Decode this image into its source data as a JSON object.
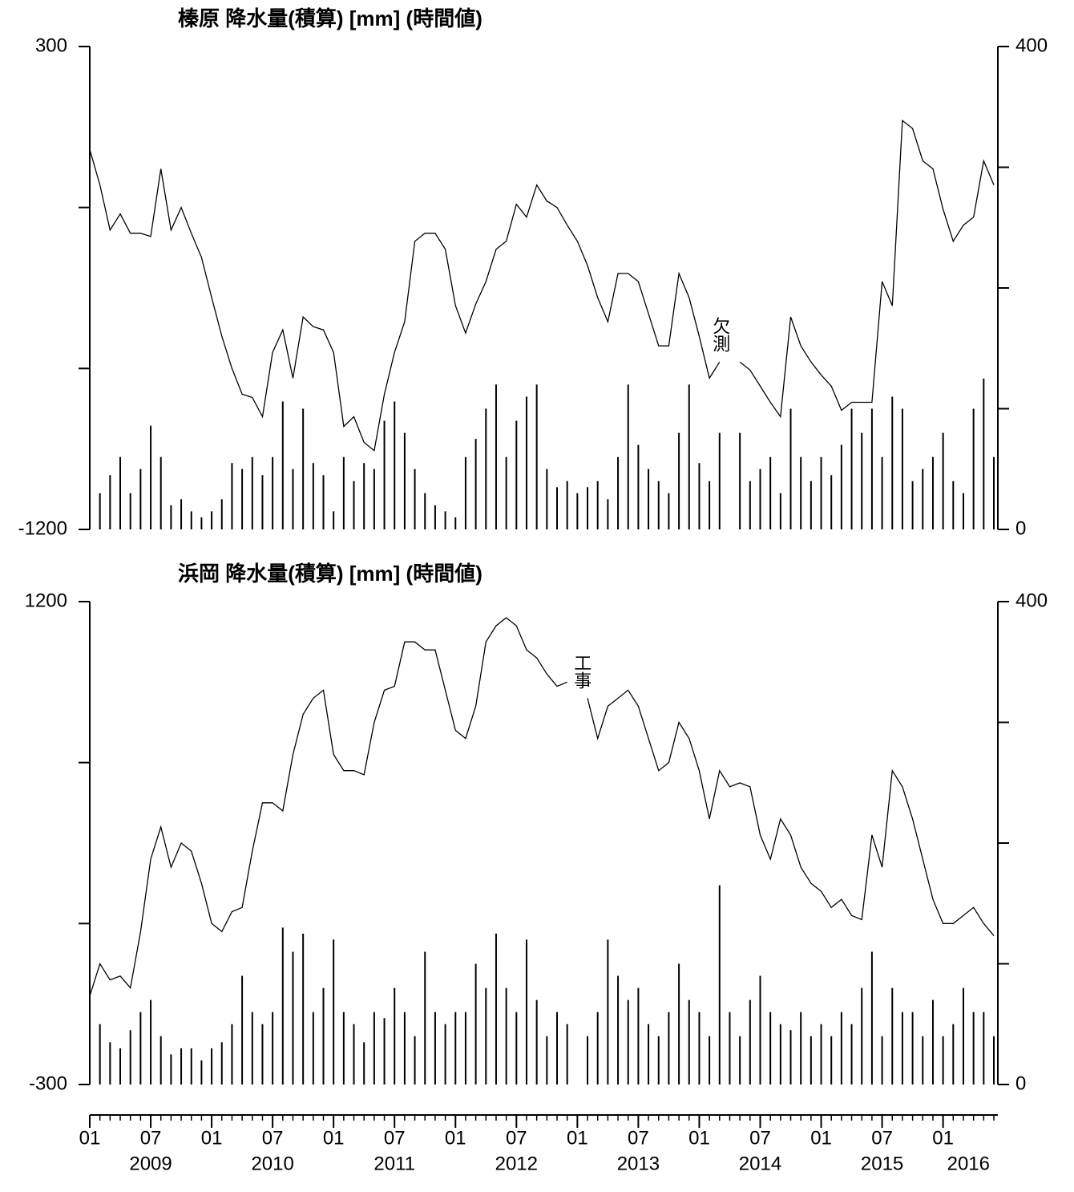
{
  "chart_data": [
    {
      "type": "line",
      "title": "榛原 降水量(積算) [mm] (時間値)",
      "ylim": [
        -1200,
        300
      ],
      "yticks": [
        -1200,
        300
      ],
      "yminor": [
        -700,
        -200
      ],
      "y2lim": [
        0,
        400
      ],
      "y2ticks": [
        0,
        400
      ],
      "y2minor": [
        100,
        200,
        300
      ],
      "annotation": "欠測",
      "series": [
        {
          "color": "#000000",
          "values": [
            -20,
            -130,
            -270,
            -220,
            -280,
            -280,
            -290,
            -80,
            -270,
            -200,
            -280,
            -355,
            -480,
            -600,
            -700,
            -780,
            -790,
            -850,
            -650,
            -580,
            -730,
            -540,
            -570,
            -580,
            -650,
            -880,
            -850,
            -930,
            -955,
            -780,
            -650,
            -555,
            -305,
            -280,
            -280,
            -330,
            -505,
            -590,
            -500,
            -430,
            -330,
            -305,
            -190,
            -230,
            -130,
            -180,
            -200,
            -255,
            -305,
            -380,
            -480,
            -555,
            -405,
            -405,
            -430,
            -530,
            -630,
            -630,
            -405,
            -480,
            -600,
            -730,
            -680,
            null,
            -680,
            -705,
            -755,
            -805,
            -850,
            -540,
            -630,
            -680,
            -720,
            -755,
            -830,
            -805,
            -805,
            -805,
            -430,
            -505,
            70,
            45,
            -55,
            -80,
            -205,
            -305,
            -255,
            -230,
            -55,
            -130
          ]
        },
        {
          "type": "bar",
          "axis": "y2",
          "color": "#000000",
          "values": [
            40,
            30,
            45,
            60,
            30,
            50,
            86,
            60,
            20,
            25,
            15,
            10,
            15,
            25,
            55,
            50,
            60,
            45,
            60,
            106,
            50,
            100,
            55,
            45,
            15,
            60,
            40,
            55,
            50,
            90,
            106,
            80,
            50,
            30,
            20,
            15,
            10,
            60,
            75,
            100,
            120,
            60,
            90,
            110,
            120,
            50,
            35,
            40,
            30,
            35,
            40,
            25,
            60,
            120,
            70,
            50,
            40,
            30,
            80,
            120,
            55,
            40,
            80,
            null,
            80,
            40,
            50,
            60,
            30,
            100,
            60,
            40,
            60,
            45,
            70,
            100,
            80,
            100,
            60,
            110,
            100,
            40,
            50,
            60,
            80,
            40,
            30,
            100,
            125,
            60
          ]
        }
      ]
    },
    {
      "type": "line",
      "title": "浜岡 降水量(積算) [mm] (時間値)",
      "ylim": [
        -300,
        1200
      ],
      "yticks": [
        -300,
        1200
      ],
      "yminor": [
        200,
        700
      ],
      "y2lim": [
        0,
        400
      ],
      "y2ticks": [
        0,
        400
      ],
      "y2minor": [
        100,
        200,
        300
      ],
      "annotation": "工事",
      "series": [
        {
          "color": "#000000",
          "values": [
            -25,
            75,
            25,
            37,
            0,
            175,
            400,
            500,
            375,
            450,
            425,
            325,
            200,
            175,
            237,
            250,
            425,
            575,
            575,
            550,
            725,
            850,
            900,
            925,
            725,
            675,
            675,
            662,
            825,
            925,
            937,
            1075,
            1075,
            1050,
            1050,
            925,
            800,
            775,
            875,
            1075,
            1125,
            1150,
            1125,
            1050,
            1025,
            975,
            937,
            950,
            null,
            900,
            775,
            875,
            900,
            925,
            875,
            775,
            675,
            700,
            825,
            775,
            675,
            525,
            675,
            625,
            637,
            625,
            475,
            400,
            525,
            475,
            375,
            325,
            300,
            250,
            275,
            225,
            212,
            475,
            375,
            675,
            625,
            525,
            400,
            275,
            200,
            200,
            225,
            250,
            200,
            162
          ]
        },
        {
          "type": "bar",
          "axis": "y2",
          "color": "#000000",
          "values": [
            40,
            50,
            35,
            30,
            45,
            60,
            70,
            40,
            25,
            30,
            30,
            20,
            30,
            35,
            50,
            90,
            60,
            50,
            60,
            130,
            110,
            125,
            60,
            80,
            120,
            60,
            50,
            35,
            60,
            55,
            80,
            60,
            40,
            110,
            60,
            50,
            60,
            60,
            100,
            80,
            125,
            80,
            60,
            120,
            70,
            40,
            60,
            50,
            null,
            40,
            60,
            120,
            90,
            70,
            80,
            50,
            40,
            60,
            100,
            70,
            60,
            40,
            165,
            60,
            40,
            70,
            90,
            60,
            50,
            45,
            60,
            40,
            50,
            40,
            60,
            50,
            80,
            110,
            40,
            80,
            60,
            60,
            40,
            70,
            40,
            50,
            80,
            60,
            60,
            40
          ]
        }
      ]
    }
  ],
  "time_axis": {
    "xlim": [
      "2009-01",
      "2016-06"
    ],
    "x": [
      "2009-01",
      "2009-02",
      "2009-03",
      "2009-04",
      "2009-05",
      "2009-06",
      "2009-07",
      "2009-08",
      "2009-09",
      "2009-10",
      "2009-11",
      "2009-12",
      "2010-01",
      "2010-02",
      "2010-03",
      "2010-04",
      "2010-05",
      "2010-06",
      "2010-07",
      "2010-08",
      "2010-09",
      "2010-10",
      "2010-11",
      "2010-12",
      "2011-01",
      "2011-02",
      "2011-03",
      "2011-04",
      "2011-05",
      "2011-06",
      "2011-07",
      "2011-08",
      "2011-09",
      "2011-10",
      "2011-11",
      "2011-12",
      "2012-01",
      "2012-02",
      "2012-03",
      "2012-04",
      "2012-05",
      "2012-06",
      "2012-07",
      "2012-08",
      "2012-09",
      "2012-10",
      "2012-11",
      "2012-12",
      "2013-01",
      "2013-02",
      "2013-03",
      "2013-04",
      "2013-05",
      "2013-06",
      "2013-07",
      "2013-08",
      "2013-09",
      "2013-10",
      "2013-11",
      "2013-12",
      "2014-01",
      "2014-02",
      "2014-03",
      "2014-04",
      "2014-05",
      "2014-06",
      "2014-07",
      "2014-08",
      "2014-09",
      "2014-10",
      "2014-11",
      "2014-12",
      "2015-01",
      "2015-02",
      "2015-03",
      "2015-04",
      "2015-05",
      "2015-06",
      "2015-07",
      "2015-08",
      "2015-09",
      "2015-10",
      "2015-11",
      "2015-12",
      "2016-01",
      "2016-02",
      "2016-03",
      "2016-04",
      "2016-05",
      "2016-06"
    ],
    "xticks": [
      {
        "value": "2009-01",
        "label": "01"
      },
      {
        "value": "2009-07",
        "label": "07"
      },
      {
        "value": "2010-01",
        "label": "01"
      },
      {
        "value": "2010-07",
        "label": "07"
      },
      {
        "value": "2011-01",
        "label": "01"
      },
      {
        "value": "2011-07",
        "label": "07"
      },
      {
        "value": "2012-01",
        "label": "01"
      },
      {
        "value": "2012-07",
        "label": "07"
      },
      {
        "value": "2013-01",
        "label": "01"
      },
      {
        "value": "2013-07",
        "label": "07"
      },
      {
        "value": "2014-01",
        "label": "01"
      },
      {
        "value": "2014-07",
        "label": "07"
      },
      {
        "value": "2015-01",
        "label": "01"
      },
      {
        "value": "2015-07",
        "label": "07"
      },
      {
        "value": "2016-01",
        "label": "01"
      }
    ],
    "years": [
      "2009",
      "2010",
      "2011",
      "2012",
      "2013",
      "2014",
      "2015",
      "2016"
    ]
  }
}
